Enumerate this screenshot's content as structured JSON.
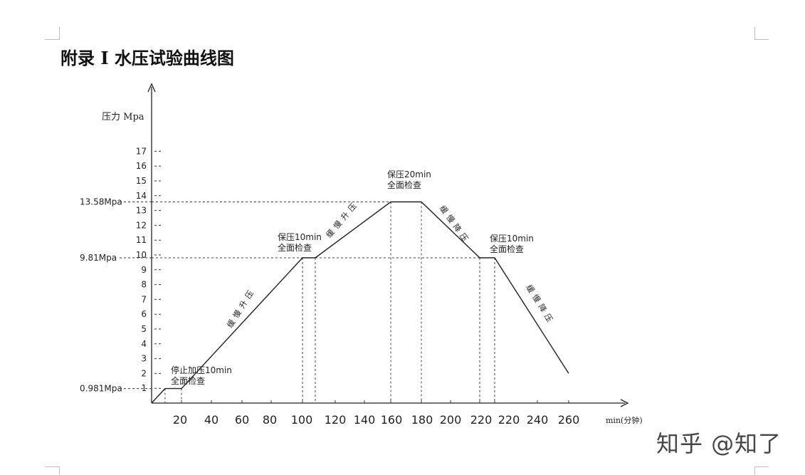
{
  "page": {
    "title": "附录 I 水压试验曲线图",
    "watermark": "知乎 @知了"
  },
  "chart_data": {
    "type": "line",
    "ylabel": "压力 Mpa",
    "xlabel": "min(分钟)",
    "x_ticks": [
      "20",
      "40",
      "60",
      "80",
      "100",
      "120",
      "140",
      "160",
      "180",
      "200",
      "220",
      "220",
      "240",
      "260"
    ],
    "y_ticks": [
      "1",
      "2",
      "3",
      "4",
      "5",
      "6",
      "7",
      "8",
      "9",
      "10",
      "11",
      "12",
      "13",
      "14",
      "15",
      "16",
      "17"
    ],
    "y_markers": [
      {
        "label": "0.981Mpa",
        "value": 0.981
      },
      {
        "label": "9.81Mpa",
        "value": 9.81
      },
      {
        "label": "13.58Mpa",
        "value": 13.58
      }
    ],
    "series": [
      {
        "points": [
          [
            0,
            0
          ],
          [
            9,
            0.981
          ],
          [
            20,
            0.981
          ],
          [
            100,
            9.81
          ],
          [
            110,
            9.81
          ],
          [
            160,
            13.58
          ],
          [
            180,
            13.58
          ],
          [
            220,
            9.81
          ],
          [
            230,
            9.81
          ],
          [
            260,
            2
          ]
        ]
      }
    ],
    "annotations": [
      {
        "lines": [
          "停止加压10min",
          "全面检查"
        ]
      },
      {
        "lines": [
          "保压10min",
          "全面检查"
        ]
      },
      {
        "lines": [
          "保压20min",
          "全面检查"
        ]
      },
      {
        "lines": [
          "保压10min",
          "全面检查"
        ]
      },
      {
        "text": "缓慢升压"
      },
      {
        "text": "缓慢升压"
      },
      {
        "text": "缓慢降压"
      },
      {
        "text": "缓慢降压"
      }
    ]
  }
}
